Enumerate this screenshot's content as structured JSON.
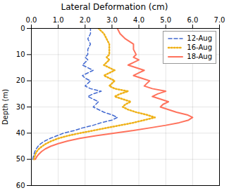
{
  "chart_data": {
    "type": "line",
    "title": "Lateral Deformation (cm)",
    "ylabel": "Depth (m)",
    "y": [
      50,
      49,
      48,
      47,
      46,
      45,
      44,
      43,
      42,
      41,
      40,
      39,
      38,
      37,
      36,
      35,
      34,
      33,
      32,
      31,
      30,
      29,
      28,
      27,
      26,
      25,
      24,
      23,
      22,
      21,
      20,
      19,
      18,
      17,
      16,
      15,
      14,
      13,
      12,
      11,
      10,
      8,
      6,
      4,
      2,
      0
    ],
    "series": [
      {
        "name": "12-Aug",
        "line_style": "dashed",
        "values": [
          0.05,
          0.07,
          0.1,
          0.13,
          0.18,
          0.25,
          0.35,
          0.5,
          0.7,
          0.95,
          1.2,
          1.6,
          1.9,
          2.3,
          2.6,
          3.0,
          3.2,
          3.0,
          2.7,
          2.5,
          2.3,
          2.4,
          2.5,
          2.3,
          2.1,
          2.3,
          2.6,
          2.2,
          2.0,
          2.1,
          2.2,
          2.0,
          1.9,
          2.1,
          2.3,
          2.1,
          1.9,
          2.0,
          2.1,
          2.0,
          2.1,
          2.1,
          2.2,
          2.1,
          2.2,
          2.2
        ]
      },
      {
        "name": "16-Aug",
        "line_style": "dotted",
        "values": [
          0.1,
          0.12,
          0.15,
          0.2,
          0.28,
          0.4,
          0.55,
          0.75,
          1.0,
          1.35,
          1.8,
          2.3,
          2.8,
          3.3,
          3.8,
          4.2,
          4.6,
          4.3,
          3.9,
          3.6,
          3.4,
          3.5,
          3.7,
          3.4,
          3.1,
          3.3,
          3.6,
          3.1,
          2.9,
          3.0,
          3.1,
          2.9,
          2.7,
          2.9,
          3.1,
          2.9,
          2.7,
          2.8,
          2.9,
          2.8,
          2.9,
          2.9,
          2.9,
          2.8,
          2.7,
          2.5
        ]
      },
      {
        "name": "18-Aug",
        "line_style": "solid",
        "values": [
          0.15,
          0.2,
          0.28,
          0.38,
          0.52,
          0.72,
          1.0,
          1.35,
          1.8,
          2.4,
          3.1,
          3.8,
          4.4,
          5.0,
          5.5,
          5.85,
          6.0,
          5.8,
          5.4,
          5.1,
          4.8,
          4.9,
          5.1,
          4.8,
          4.5,
          4.7,
          5.0,
          4.5,
          4.2,
          4.3,
          4.4,
          4.1,
          3.8,
          4.0,
          4.2,
          3.9,
          3.6,
          3.8,
          4.0,
          3.8,
          3.9,
          3.8,
          3.8,
          3.5,
          3.3,
          3.2
        ]
      }
    ],
    "xlim": [
      0,
      7
    ],
    "ylim": [
      60,
      0
    ],
    "xticks": [
      0,
      1,
      2,
      3,
      4,
      5,
      6,
      7
    ],
    "yticks": [
      0,
      10,
      20,
      30,
      40,
      50,
      60
    ],
    "grid": true,
    "legend": "upper right"
  }
}
